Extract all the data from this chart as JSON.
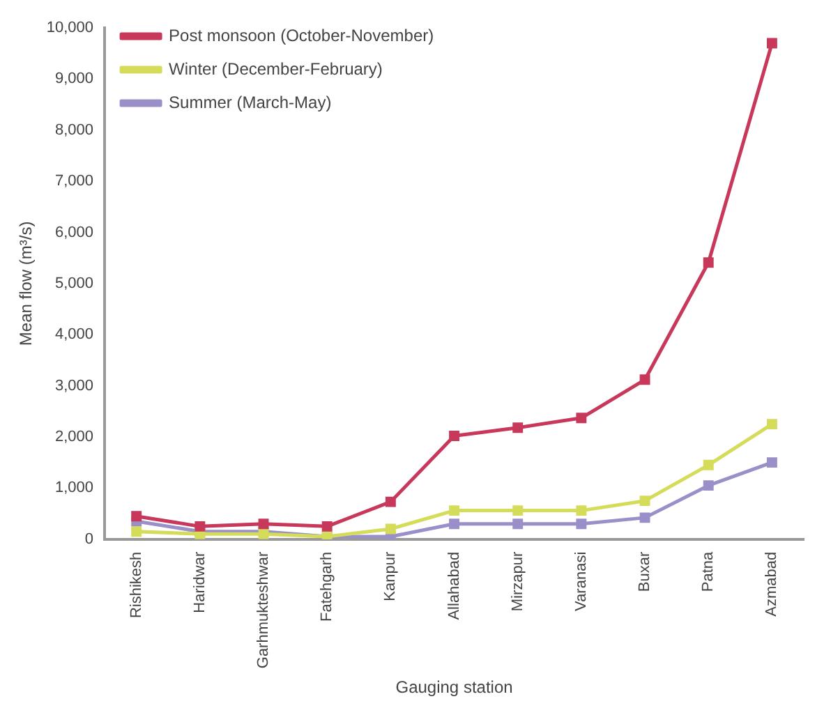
{
  "chart_data": {
    "type": "line",
    "xlabel": "Gauging station",
    "ylabel": "Mean flow (m³/s)",
    "categories": [
      "Rishikesh",
      "Haridwar",
      "Garhmukteshwar",
      "Fatehgarh",
      "Kanpur",
      "Allahabad",
      "Mirzapur",
      "Varanasi",
      "Buxar",
      "Patna",
      "Azmabad"
    ],
    "series": [
      {
        "name": "Post monsoon (October-November)",
        "color": "#c8385a",
        "values": [
          450,
          250,
          300,
          250,
          730,
          2020,
          2180,
          2370,
          3120,
          5410,
          9700
        ]
      },
      {
        "name": "Winter (December-February)",
        "color": "#d4dc5a",
        "values": [
          150,
          100,
          100,
          50,
          200,
          560,
          560,
          560,
          750,
          1450,
          2250
        ]
      },
      {
        "name": "Summer (March-May)",
        "color": "#9a8fc8",
        "values": [
          350,
          150,
          150,
          50,
          50,
          300,
          300,
          300,
          420,
          1050,
          1500
        ]
      }
    ],
    "ylim": [
      0,
      10000
    ],
    "yticks": [
      0,
      {
        "value": 1000,
        "label": "1,000"
      },
      {
        "value": 2000,
        "label": "2,000"
      },
      {
        "value": 3000,
        "label": "3,000"
      },
      {
        "value": 4000,
        "label": "4,000"
      },
      {
        "value": 5000,
        "label": "5,000"
      },
      {
        "value": 6000,
        "label": "6,000"
      },
      {
        "value": 7000,
        "label": "7,000"
      },
      {
        "value": 8000,
        "label": "8,000"
      },
      {
        "value": 9000,
        "label": "9,000"
      },
      {
        "value": 10000,
        "label": "10,000"
      }
    ],
    "grid": false,
    "legend": "top left",
    "marker": "square",
    "line_style": "solid"
  }
}
